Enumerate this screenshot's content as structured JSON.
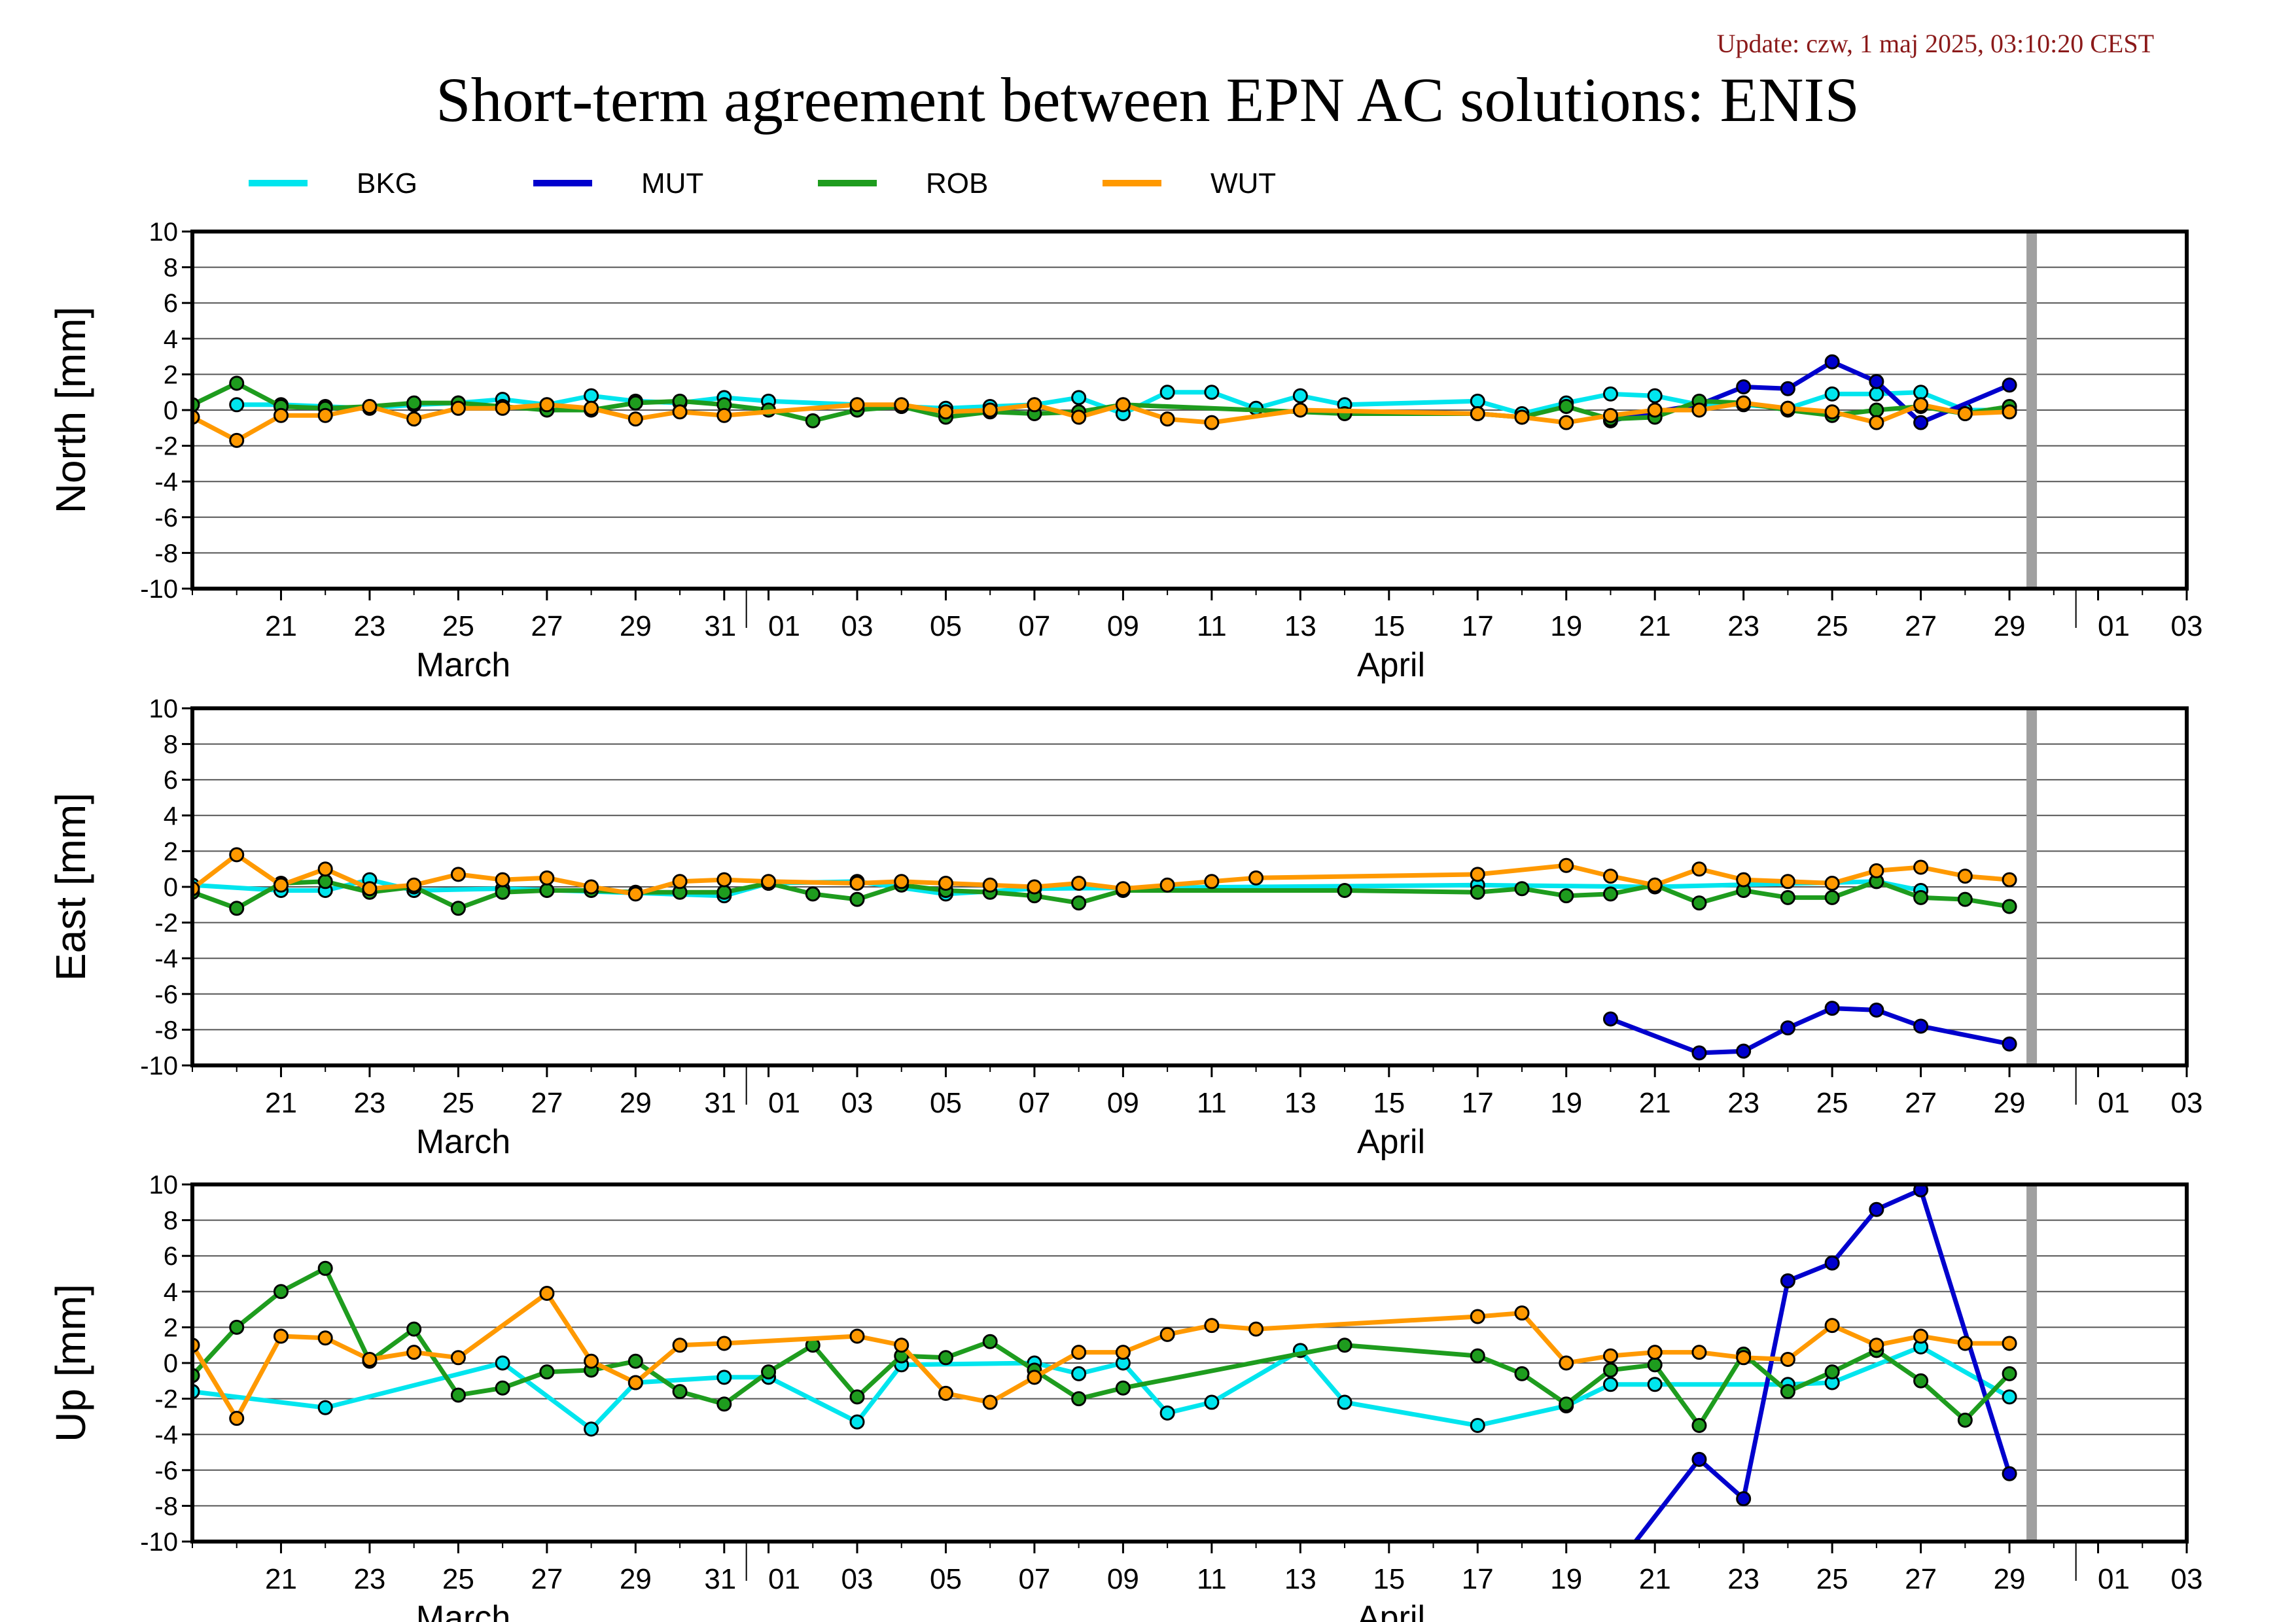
{
  "update_text": "Update: czw, 1 maj 2025, 03:10:20 CEST",
  "colors": {
    "update": "#8b1a1a",
    "BKG": "#00e5ee",
    "MUT": "#0000cd",
    "ROB": "#1e9c1e",
    "WUT": "#ff9900",
    "grid": "#555555",
    "marker_border": "#000000",
    "today_bar": "#a0a0a0"
  },
  "chart_data": [
    {
      "type": "line",
      "title": "Short-term agreement between EPN AC solutions: ENIS",
      "ylabel": "North [mm]",
      "ylim": [
        -10,
        10
      ],
      "yticks": [
        10,
        8,
        6,
        4,
        2,
        0,
        -2,
        -4,
        -6,
        -8,
        -10
      ],
      "xlim": [
        "2025-03-19",
        "2025-05-03"
      ],
      "xtick_labels": [
        "21",
        "23",
        "25",
        "27",
        "29",
        "31",
        "01",
        "03",
        "05",
        "07",
        "09",
        "11",
        "13",
        "15",
        "17",
        "19",
        "21",
        "23",
        "25",
        "27",
        "29",
        "01",
        "03"
      ],
      "month_labels": [
        "March",
        "April"
      ],
      "today_marker": "2025-04-29",
      "legend": [
        "BKG",
        "MUT",
        "ROB",
        "WUT"
      ],
      "series": [
        {
          "name": "BKG",
          "x": [
            "2025-03-20",
            "2025-03-21",
            "2025-03-22",
            "2025-03-23",
            "2025-03-24",
            "2025-03-25",
            "2025-03-26",
            "2025-03-27",
            "2025-03-28",
            "2025-03-29",
            "2025-03-30",
            "2025-03-31",
            "2025-04-01",
            "2025-04-03",
            "2025-04-04",
            "2025-04-05",
            "2025-04-06",
            "2025-04-07",
            "2025-04-08",
            "2025-04-09",
            "2025-04-10",
            "2025-04-11",
            "2025-04-12",
            "2025-04-13",
            "2025-04-14",
            "2025-04-17",
            "2025-04-18",
            "2025-04-19",
            "2025-04-20",
            "2025-04-21",
            "2025-04-22",
            "2025-04-23",
            "2025-04-24",
            "2025-04-25",
            "2025-04-26",
            "2025-04-27",
            "2025-04-28",
            "2025-04-29"
          ],
          "y": [
            0.3,
            0.3,
            0.2,
            0.1,
            0.3,
            0.4,
            0.6,
            0.3,
            0.8,
            0.5,
            0.4,
            0.7,
            0.5,
            0.3,
            0.2,
            0.1,
            0.2,
            0.3,
            0.7,
            -0.2,
            1.0,
            1.0,
            0.1,
            0.8,
            0.3,
            0.5,
            -0.2,
            0.4,
            0.9,
            0.8,
            0.3,
            0.3,
            0.1,
            0.9,
            0.9,
            1.0,
            0.0,
            0.0
          ]
        },
        {
          "name": "MUT",
          "x": [
            "2025-04-20",
            "2025-04-21",
            "2025-04-22",
            "2025-04-23",
            "2025-04-24",
            "2025-04-25",
            "2025-04-26",
            "2025-04-27",
            "2025-04-29"
          ],
          "y": [
            -0.6,
            -0.1,
            0.3,
            1.3,
            1.2,
            2.7,
            1.6,
            -0.7,
            1.4
          ]
        },
        {
          "name": "ROB",
          "x": [
            "2025-03-19",
            "2025-03-20",
            "2025-03-21",
            "2025-03-22",
            "2025-03-23",
            "2025-03-24",
            "2025-03-25",
            "2025-03-26",
            "2025-03-27",
            "2025-03-28",
            "2025-03-29",
            "2025-03-30",
            "2025-03-31",
            "2025-04-01",
            "2025-04-02",
            "2025-04-03",
            "2025-04-04",
            "2025-04-05",
            "2025-04-06",
            "2025-04-07",
            "2025-04-08",
            "2025-04-09",
            "2025-04-14",
            "2025-04-17",
            "2025-04-18",
            "2025-04-19",
            "2025-04-20",
            "2025-04-21",
            "2025-04-22",
            "2025-04-23",
            "2025-04-24",
            "2025-04-25",
            "2025-04-26",
            "2025-04-27",
            "2025-04-28",
            "2025-04-29"
          ],
          "y": [
            0.3,
            1.5,
            0.2,
            0.1,
            0.2,
            0.4,
            0.4,
            0.2,
            0.0,
            0.0,
            0.4,
            0.5,
            0.3,
            0.0,
            -0.6,
            0.0,
            0.2,
            -0.4,
            -0.1,
            -0.2,
            -0.1,
            0.3,
            -0.2,
            -0.2,
            -0.4,
            0.2,
            -0.5,
            -0.4,
            0.5,
            0.4,
            0.0,
            -0.3,
            0.0,
            0.2,
            -0.2,
            0.2
          ]
        },
        {
          "name": "WUT",
          "x": [
            "2025-03-19",
            "2025-03-20",
            "2025-03-21",
            "2025-03-22",
            "2025-03-23",
            "2025-03-24",
            "2025-03-25",
            "2025-03-26",
            "2025-03-27",
            "2025-03-28",
            "2025-03-29",
            "2025-03-30",
            "2025-03-31",
            "2025-04-03",
            "2025-04-04",
            "2025-04-05",
            "2025-04-06",
            "2025-04-07",
            "2025-04-08",
            "2025-04-09",
            "2025-04-10",
            "2025-04-11",
            "2025-04-13",
            "2025-04-17",
            "2025-04-18",
            "2025-04-19",
            "2025-04-20",
            "2025-04-21",
            "2025-04-22",
            "2025-04-23",
            "2025-04-24",
            "2025-04-25",
            "2025-04-26",
            "2025-04-27",
            "2025-04-28",
            "2025-04-29"
          ],
          "y": [
            -0.4,
            -1.7,
            -0.3,
            -0.3,
            0.2,
            -0.5,
            0.1,
            0.1,
            0.3,
            0.1,
            -0.5,
            -0.1,
            -0.3,
            0.3,
            0.3,
            -0.1,
            0.0,
            0.3,
            -0.4,
            0.3,
            -0.5,
            -0.7,
            0.0,
            -0.2,
            -0.4,
            -0.7,
            -0.3,
            0.0,
            0.0,
            0.4,
            0.1,
            -0.1,
            -0.7,
            0.3,
            -0.2,
            -0.1
          ]
        }
      ]
    },
    {
      "type": "line",
      "ylabel": "East [mm]",
      "ylim": [
        -10,
        10
      ],
      "yticks": [
        10,
        8,
        6,
        4,
        2,
        0,
        -2,
        -4,
        -6,
        -8,
        -10
      ],
      "xlim": [
        "2025-03-19",
        "2025-05-03"
      ],
      "xtick_labels": [
        "21",
        "23",
        "25",
        "27",
        "29",
        "31",
        "01",
        "03",
        "05",
        "07",
        "09",
        "11",
        "13",
        "15",
        "17",
        "19",
        "21",
        "23",
        "25",
        "27",
        "29",
        "01",
        "03"
      ],
      "month_labels": [
        "March",
        "April"
      ],
      "today_marker": "2025-04-29",
      "series": [
        {
          "name": "BKG",
          "x": [
            "2025-03-19",
            "2025-03-21",
            "2025-03-22",
            "2025-03-23",
            "2025-03-24",
            "2025-03-26",
            "2025-03-31",
            "2025-04-01",
            "2025-04-03",
            "2025-04-05",
            "2025-04-07",
            "2025-04-17",
            "2025-04-21",
            "2025-04-26",
            "2025-04-27"
          ],
          "y": [
            0.1,
            -0.2,
            -0.2,
            0.4,
            -0.2,
            -0.1,
            -0.5,
            0.2,
            0.3,
            -0.4,
            -0.1,
            0.1,
            0.0,
            0.3,
            -0.2
          ]
        },
        {
          "name": "MUT",
          "x": [
            "2025-04-20",
            "2025-04-22",
            "2025-04-23",
            "2025-04-24",
            "2025-04-25",
            "2025-04-26",
            "2025-04-27",
            "2025-04-29"
          ],
          "y": [
            -7.4,
            -9.3,
            -9.2,
            -7.9,
            -6.8,
            -6.9,
            -7.8,
            -8.8
          ]
        },
        {
          "name": "ROB",
          "x": [
            "2025-03-19",
            "2025-03-20",
            "2025-03-21",
            "2025-03-22",
            "2025-03-23",
            "2025-03-24",
            "2025-03-25",
            "2025-03-26",
            "2025-03-27",
            "2025-03-28",
            "2025-03-29",
            "2025-03-30",
            "2025-03-31",
            "2025-04-01",
            "2025-04-02",
            "2025-04-03",
            "2025-04-04",
            "2025-04-05",
            "2025-04-06",
            "2025-04-07",
            "2025-04-08",
            "2025-04-09",
            "2025-04-14",
            "2025-04-17",
            "2025-04-18",
            "2025-04-19",
            "2025-04-20",
            "2025-04-21",
            "2025-04-22",
            "2025-04-23",
            "2025-04-24",
            "2025-04-25",
            "2025-04-26",
            "2025-04-27",
            "2025-04-28",
            "2025-04-29"
          ],
          "y": [
            -0.3,
            -1.2,
            0.2,
            0.3,
            -0.3,
            0.0,
            -1.2,
            -0.3,
            -0.2,
            -0.2,
            -0.3,
            -0.3,
            -0.3,
            0.2,
            -0.4,
            -0.7,
            0.1,
            -0.2,
            -0.3,
            -0.5,
            -0.9,
            -0.2,
            -0.2,
            -0.3,
            -0.1,
            -0.5,
            -0.4,
            0.1,
            -0.9,
            -0.2,
            -0.6,
            -0.6,
            0.3,
            -0.6,
            -0.7,
            -1.1
          ]
        },
        {
          "name": "WUT",
          "x": [
            "2025-03-19",
            "2025-03-20",
            "2025-03-21",
            "2025-03-22",
            "2025-03-23",
            "2025-03-24",
            "2025-03-25",
            "2025-03-26",
            "2025-03-27",
            "2025-03-28",
            "2025-03-29",
            "2025-03-30",
            "2025-03-31",
            "2025-04-01",
            "2025-04-03",
            "2025-04-04",
            "2025-04-05",
            "2025-04-06",
            "2025-04-07",
            "2025-04-08",
            "2025-04-09",
            "2025-04-10",
            "2025-04-11",
            "2025-04-12",
            "2025-04-17",
            "2025-04-19",
            "2025-04-20",
            "2025-04-21",
            "2025-04-22",
            "2025-04-23",
            "2025-04-24",
            "2025-04-25",
            "2025-04-26",
            "2025-04-27",
            "2025-04-28",
            "2025-04-29"
          ],
          "y": [
            -0.1,
            1.8,
            0.1,
            1.0,
            -0.1,
            0.1,
            0.7,
            0.4,
            0.5,
            0.0,
            -0.4,
            0.3,
            0.4,
            0.3,
            0.2,
            0.3,
            0.2,
            0.1,
            0.0,
            0.2,
            -0.1,
            0.1,
            0.3,
            0.5,
            0.7,
            1.2,
            0.6,
            0.1,
            1.0,
            0.4,
            0.3,
            0.2,
            0.9,
            1.1,
            0.6,
            0.4
          ]
        }
      ]
    },
    {
      "type": "line",
      "ylabel": "Up [mm]",
      "ylim": [
        -10,
        10
      ],
      "yticks": [
        10,
        8,
        6,
        4,
        2,
        0,
        -2,
        -4,
        -6,
        -8,
        -10
      ],
      "xlim": [
        "2025-03-19",
        "2025-05-03"
      ],
      "xtick_labels": [
        "21",
        "23",
        "25",
        "27",
        "29",
        "31",
        "01",
        "03",
        "05",
        "07",
        "09",
        "11",
        "13",
        "15",
        "17",
        "19",
        "21",
        "23",
        "25",
        "27",
        "29",
        "01",
        "03"
      ],
      "month_labels": [
        "March",
        "April"
      ],
      "today_marker": "2025-04-29",
      "series": [
        {
          "name": "BKG",
          "x": [
            "2025-03-19",
            "2025-03-22",
            "2025-03-26",
            "2025-03-28",
            "2025-03-29",
            "2025-03-31",
            "2025-04-01",
            "2025-04-03",
            "2025-04-04",
            "2025-04-07",
            "2025-04-08",
            "2025-04-09",
            "2025-04-10",
            "2025-04-11",
            "2025-04-13",
            "2025-04-14",
            "2025-04-17",
            "2025-04-19",
            "2025-04-20",
            "2025-04-21",
            "2025-04-24",
            "2025-04-25",
            "2025-04-27",
            "2025-04-29"
          ],
          "y": [
            -1.6,
            -2.5,
            0.0,
            -3.7,
            -1.1,
            -0.8,
            -0.8,
            -3.3,
            -0.1,
            0.0,
            -0.6,
            0.0,
            -2.8,
            -2.2,
            0.7,
            -2.2,
            -3.5,
            -2.4,
            -1.2,
            -1.2,
            -1.2,
            -1.1,
            0.9,
            -1.9
          ]
        },
        {
          "name": "MUT",
          "x": [
            "2025-04-19",
            "2025-04-22",
            "2025-04-23",
            "2025-04-24",
            "2025-04-25",
            "2025-04-26",
            "2025-04-27",
            "2025-04-29"
          ],
          "y": [
            -15.0,
            -5.4,
            -7.6,
            4.6,
            5.6,
            8.6,
            9.7,
            -6.2
          ]
        },
        {
          "name": "ROB",
          "x": [
            "2025-03-19",
            "2025-03-20",
            "2025-03-21",
            "2025-03-22",
            "2025-03-23",
            "2025-03-24",
            "2025-03-25",
            "2025-03-26",
            "2025-03-27",
            "2025-03-28",
            "2025-03-29",
            "2025-03-30",
            "2025-03-31",
            "2025-04-01",
            "2025-04-02",
            "2025-04-03",
            "2025-04-04",
            "2025-04-05",
            "2025-04-06",
            "2025-04-07",
            "2025-04-08",
            "2025-04-09",
            "2025-04-14",
            "2025-04-17",
            "2025-04-18",
            "2025-04-19",
            "2025-04-20",
            "2025-04-21",
            "2025-04-22",
            "2025-04-23",
            "2025-04-24",
            "2025-04-25",
            "2025-04-26",
            "2025-04-27",
            "2025-04-28",
            "2025-04-29"
          ],
          "y": [
            -0.7,
            2.0,
            4.0,
            5.3,
            0.1,
            1.9,
            -1.8,
            -1.4,
            -0.5,
            -0.4,
            0.1,
            -1.6,
            -2.3,
            -0.5,
            1.0,
            -1.9,
            0.4,
            0.3,
            1.2,
            -0.4,
            -2.0,
            -1.4,
            1.0,
            0.4,
            -0.6,
            -2.3,
            -0.4,
            -0.1,
            -3.5,
            0.5,
            -1.6,
            -0.5,
            0.7,
            -1.0,
            -3.2,
            -0.6
          ]
        },
        {
          "name": "WUT",
          "x": [
            "2025-03-19",
            "2025-03-20",
            "2025-03-21",
            "2025-03-22",
            "2025-03-23",
            "2025-03-24",
            "2025-03-25",
            "2025-03-27",
            "2025-03-28",
            "2025-03-29",
            "2025-03-30",
            "2025-03-31",
            "2025-04-03",
            "2025-04-04",
            "2025-04-05",
            "2025-04-06",
            "2025-04-07",
            "2025-04-08",
            "2025-04-09",
            "2025-04-10",
            "2025-04-11",
            "2025-04-12",
            "2025-04-17",
            "2025-04-18",
            "2025-04-19",
            "2025-04-20",
            "2025-04-21",
            "2025-04-22",
            "2025-04-23",
            "2025-04-24",
            "2025-04-25",
            "2025-04-26",
            "2025-04-27",
            "2025-04-28",
            "2025-04-29"
          ],
          "y": [
            1.0,
            -3.1,
            1.5,
            1.4,
            0.2,
            0.6,
            0.3,
            3.9,
            0.1,
            -1.1,
            1.0,
            1.1,
            1.5,
            1.0,
            -1.7,
            -2.2,
            -0.8,
            0.6,
            0.6,
            1.6,
            2.1,
            1.9,
            2.6,
            2.8,
            0.0,
            0.4,
            0.6,
            0.6,
            0.3,
            0.2,
            2.1,
            1.0,
            1.5,
            1.1,
            1.1
          ]
        }
      ]
    }
  ]
}
